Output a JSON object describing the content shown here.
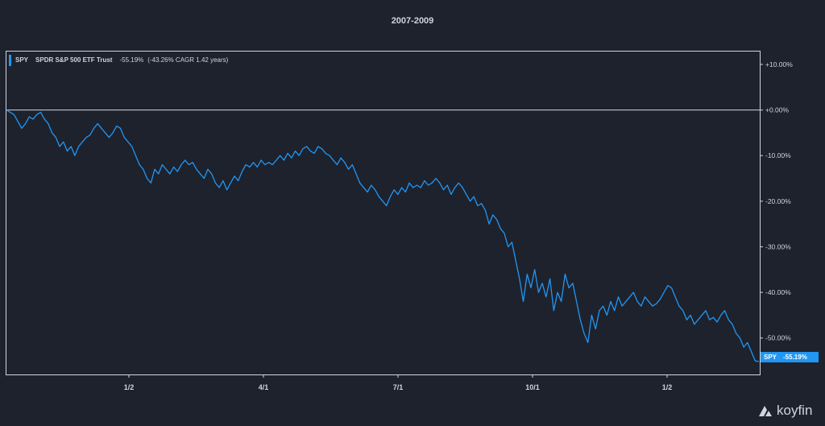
{
  "chart_data": {
    "type": "line",
    "title": "2007-2009",
    "ylim": [
      -58,
      13
    ],
    "y_ticks": [
      10,
      0,
      -10,
      -20,
      -30,
      -40,
      -50
    ],
    "y_tick_labels": [
      "+10.00%",
      "+0.00%",
      "-10.00%",
      "-20.00%",
      "-30.00%",
      "-40.00%",
      "-50.00%"
    ],
    "x_ticks": [
      "1/2",
      "4/1",
      "7/1",
      "10/1",
      "1/2"
    ],
    "grid": false,
    "zero_line": true,
    "series": [
      {
        "name": "SPY",
        "color": "#2196f3",
        "values": [
          0,
          -0.5,
          -1,
          -2.5,
          -4,
          -3,
          -1.5,
          -2,
          -1,
          -0.5,
          -2,
          -3,
          -5,
          -6,
          -8,
          -7,
          -9,
          -8,
          -10,
          -8,
          -7,
          -6,
          -5.5,
          -4,
          -3,
          -4,
          -5,
          -6,
          -5,
          -3.5,
          -4,
          -6,
          -7,
          -8,
          -10,
          -12,
          -13,
          -15,
          -16,
          -13,
          -14,
          -12,
          -13,
          -14,
          -12.5,
          -13.5,
          -12,
          -11,
          -12,
          -11.5,
          -13,
          -14,
          -15,
          -13,
          -14,
          -16,
          -17,
          -15.5,
          -17.5,
          -16,
          -14.5,
          -15.5,
          -13.5,
          -12,
          -12.5,
          -11.5,
          -12.5,
          -11,
          -12,
          -11.5,
          -12,
          -11,
          -10,
          -11,
          -9.5,
          -10.5,
          -9,
          -10,
          -8.5,
          -8,
          -9,
          -9.5,
          -8,
          -8.5,
          -9.5,
          -10,
          -11,
          -12,
          -10.5,
          -11.5,
          -13,
          -12,
          -14,
          -16,
          -17,
          -18,
          -16.5,
          -17.5,
          -19,
          -20,
          -21,
          -19,
          -17.5,
          -18.5,
          -17,
          -18,
          -16,
          -17,
          -16.5,
          -17,
          -15.5,
          -16.5,
          -16,
          -15,
          -16,
          -17.5,
          -16.5,
          -18.5,
          -17,
          -16,
          -17,
          -18.5,
          -20,
          -19,
          -21,
          -20.5,
          -22,
          -25,
          -23,
          -24,
          -26,
          -27,
          -30,
          -29,
          -33,
          -37,
          -42,
          -36,
          -39,
          -35,
          -40,
          -38,
          -41,
          -37,
          -44,
          -40,
          -42,
          -36,
          -39,
          -38,
          -42,
          -46,
          -49,
          -51,
          -45,
          -48,
          -44,
          -43,
          -45,
          -42,
          -44,
          -41,
          -43,
          -42,
          -41,
          -40,
          -42,
          -43,
          -41,
          -42,
          -43,
          -42.5,
          -41.5,
          -40,
          -38.5,
          -39,
          -41,
          -43,
          -44,
          -46,
          -45,
          -47,
          -46,
          -45,
          -44,
          -46,
          -45.5,
          -46.5,
          -45,
          -44,
          -46,
          -47,
          -49,
          -50,
          -52,
          -51,
          -53,
          -55,
          -55.19
        ]
      }
    ],
    "legend": {
      "ticker": "SPY",
      "name": "SPDR S&P 500 ETF Trust",
      "return": "-55.19%",
      "cagr": "(-43.26% CAGR 1.42 years)"
    },
    "end_label": {
      "ticker": "SPY",
      "value": "-55.19%"
    }
  },
  "brand": {
    "name": "koyfin"
  }
}
